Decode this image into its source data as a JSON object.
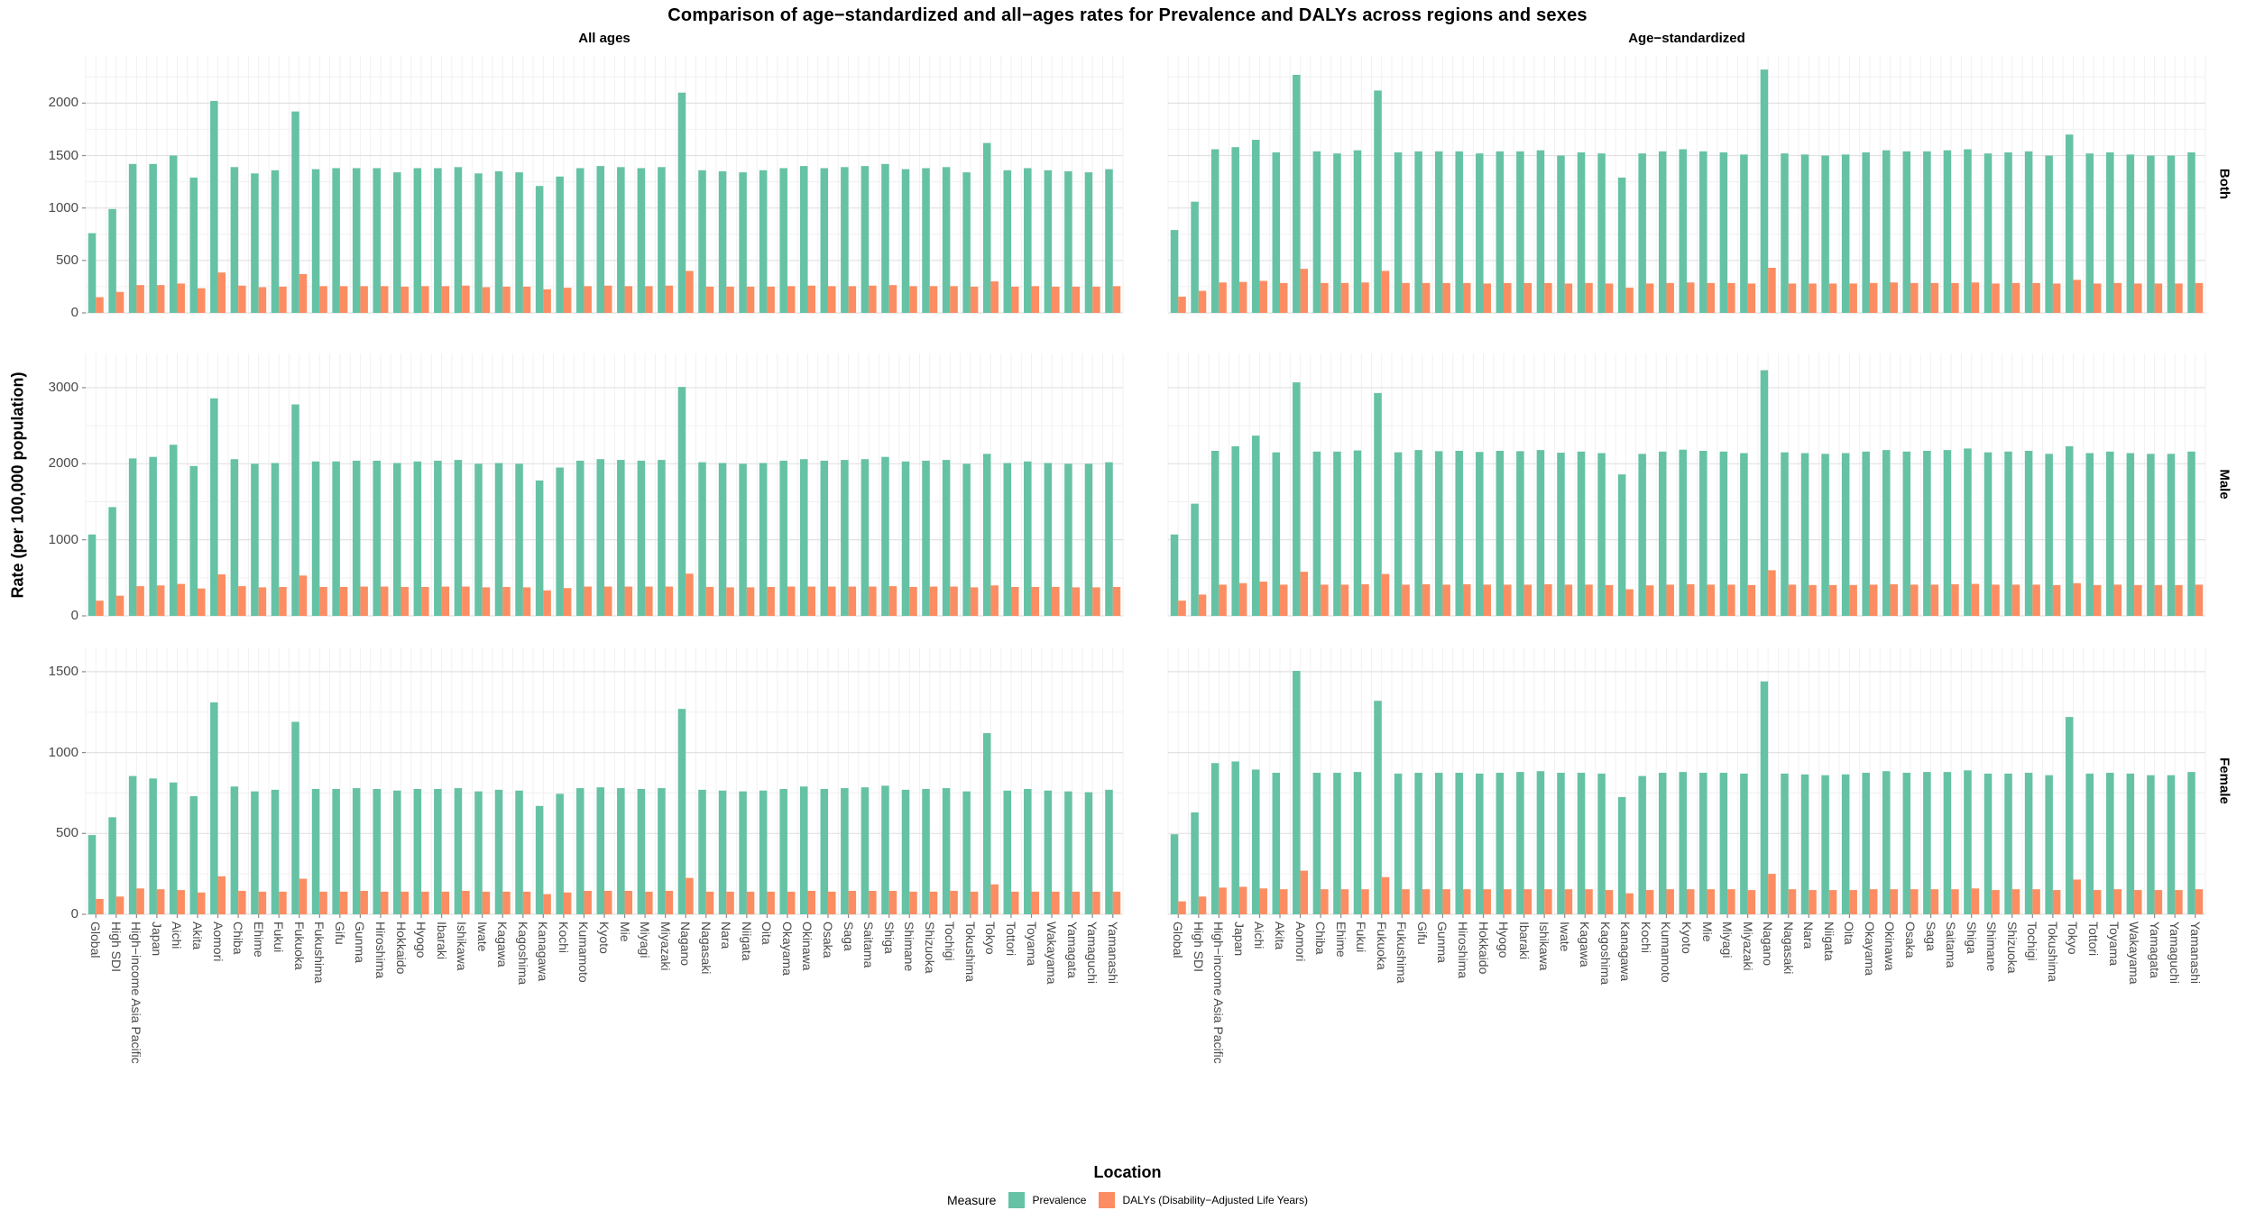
{
  "title": "Comparison of age−standardized and all−ages rates for Prevalence and DALYs across regions and sexes",
  "y_axis_label": "Rate (per 100,000 population)",
  "x_axis_label": "Location",
  "facets": {
    "columns": [
      "All ages",
      "Age−standardized"
    ],
    "rows": [
      "Both",
      "Male",
      "Female"
    ]
  },
  "legend": {
    "title": "Measure",
    "items": [
      {
        "label": "Prevalence",
        "color": "#66C2A5"
      },
      {
        "label": "DALYs (Disability−Adjusted Life Years)",
        "color": "#FC8D62"
      }
    ]
  },
  "chart_data": {
    "type": "bar",
    "grid": "on",
    "legend_position": "bottom",
    "categories": [
      "Global",
      "High SDI",
      "High−income Asia Pacific",
      "Japan",
      "Aichi",
      "Akita",
      "Aomori",
      "Chiba",
      "Ehime",
      "Fukui",
      "Fukuoka",
      "Fukushima",
      "Gifu",
      "Gunma",
      "Hiroshima",
      "Hokkaido",
      "Hyogo",
      "Ibaraki",
      "Ishikawa",
      "Iwate",
      "Kagawa",
      "Kagoshima",
      "Kanagawa",
      "Kochi",
      "Kumamoto",
      "Kyoto",
      "Mie",
      "Miyagi",
      "Miyazaki",
      "Nagano",
      "Nagasaki",
      "Nara",
      "Niigata",
      "Oita",
      "Okayama",
      "Okinawa",
      "Osaka",
      "Saga",
      "Saitama",
      "Shiga",
      "Shimane",
      "Shizuoka",
      "Tochigi",
      "Tokushima",
      "Tokyo",
      "Tottori",
      "Toyama",
      "Wakayama",
      "Yamagata",
      "Yamaguchi",
      "Yamanashi"
    ],
    "panels": [
      {
        "row": "Both",
        "column": "All ages",
        "ylim": [
          0,
          2450
        ],
        "y_ticks": [
          0,
          500,
          1000,
          1500,
          2000
        ],
        "series": [
          {
            "name": "Prevalence",
            "values": [
              760,
              990,
              1420,
              1420,
              1500,
              1290,
              2020,
              1390,
              1330,
              1360,
              1920,
              1370,
              1380,
              1380,
              1380,
              1340,
              1380,
              1380,
              1390,
              1330,
              1350,
              1340,
              1210,
              1300,
              1380,
              1400,
              1390,
              1380,
              1390,
              2100,
              1360,
              1350,
              1340,
              1360,
              1380,
              1400,
              1380,
              1390,
              1400,
              1420,
              1370,
              1380,
              1390,
              1340,
              1620,
              1360,
              1380,
              1360,
              1350,
              1340,
              1370
            ]
          },
          {
            "name": "DALYs",
            "values": [
              150,
              200,
              265,
              265,
              280,
              235,
              385,
              260,
              245,
              250,
              370,
              255,
              255,
              255,
              255,
              250,
              255,
              255,
              260,
              245,
              250,
              250,
              225,
              240,
              255,
              260,
              255,
              255,
              260,
              400,
              250,
              250,
              250,
              250,
              255,
              260,
              255,
              255,
              260,
              265,
              255,
              255,
              255,
              250,
              300,
              250,
              255,
              250,
              250,
              250,
              255
            ]
          }
        ]
      },
      {
        "row": "Both",
        "column": "Age−standardized",
        "ylim": [
          0,
          2450
        ],
        "y_ticks": [
          0,
          500,
          1000,
          1500,
          2000
        ],
        "series": [
          {
            "name": "Prevalence",
            "values": [
              790,
              1060,
              1560,
              1580,
              1650,
              1530,
              2270,
              1540,
              1520,
              1550,
              2120,
              1530,
              1540,
              1540,
              1540,
              1520,
              1540,
              1540,
              1550,
              1500,
              1530,
              1520,
              1290,
              1520,
              1540,
              1560,
              1540,
              1530,
              1510,
              2320,
              1520,
              1510,
              1500,
              1510,
              1530,
              1550,
              1540,
              1540,
              1550,
              1560,
              1520,
              1530,
              1540,
              1500,
              1700,
              1520,
              1530,
              1510,
              1500,
              1500,
              1530
            ]
          },
          {
            "name": "DALYs",
            "values": [
              155,
              210,
              290,
              295,
              305,
              285,
              420,
              285,
              285,
              290,
              400,
              285,
              285,
              285,
              285,
              280,
              285,
              285,
              285,
              280,
              285,
              280,
              240,
              280,
              285,
              290,
              285,
              285,
              280,
              430,
              280,
              280,
              280,
              280,
              285,
              290,
              285,
              285,
              285,
              290,
              280,
              285,
              285,
              280,
              315,
              280,
              285,
              280,
              280,
              280,
              285
            ]
          }
        ]
      },
      {
        "row": "Male",
        "column": "All ages",
        "ylim": [
          0,
          3450
        ],
        "y_ticks": [
          0,
          1000,
          2000,
          3000
        ],
        "series": [
          {
            "name": "Prevalence",
            "values": [
              1070,
              1430,
              2070,
              2090,
              2250,
              1970,
              2860,
              2060,
              2000,
              2010,
              2780,
              2030,
              2030,
              2040,
              2040,
              2010,
              2030,
              2040,
              2050,
              2000,
              2010,
              2000,
              1780,
              1950,
              2040,
              2060,
              2050,
              2040,
              2050,
              3010,
              2020,
              2010,
              2000,
              2010,
              2040,
              2060,
              2040,
              2050,
              2060,
              2090,
              2030,
              2040,
              2050,
              2000,
              2130,
              2010,
              2030,
              2010,
              2000,
              2000,
              2020
            ]
          },
          {
            "name": "DALYs",
            "values": [
              200,
              265,
              390,
              400,
              420,
              360,
              545,
              390,
              375,
              380,
              530,
              380,
              380,
              385,
              385,
              380,
              380,
              385,
              385,
              375,
              380,
              375,
              335,
              365,
              385,
              385,
              385,
              385,
              385,
              555,
              380,
              375,
              375,
              380,
              385,
              385,
              385,
              385,
              385,
              390,
              380,
              385,
              385,
              375,
              400,
              380,
              380,
              380,
              375,
              375,
              380
            ]
          }
        ]
      },
      {
        "row": "Male",
        "column": "Age−standardized",
        "ylim": [
          0,
          3450
        ],
        "y_ticks": [
          0,
          1000,
          2000,
          3000
        ],
        "series": [
          {
            "name": "Prevalence",
            "values": [
              1070,
              1475,
              2170,
              2230,
              2370,
              2150,
              3070,
              2160,
              2160,
              2175,
              2930,
              2150,
              2180,
              2165,
              2170,
              2155,
              2170,
              2165,
              2180,
              2145,
              2160,
              2140,
              1860,
              2130,
              2160,
              2185,
              2170,
              2160,
              2140,
              3230,
              2150,
              2140,
              2130,
              2140,
              2160,
              2180,
              2160,
              2170,
              2180,
              2200,
              2150,
              2160,
              2170,
              2130,
              2230,
              2140,
              2160,
              2140,
              2130,
              2130,
              2160
            ]
          },
          {
            "name": "DALYs",
            "values": [
              200,
              280,
              410,
              430,
              450,
              410,
              580,
              410,
              410,
              415,
              550,
              410,
              415,
              410,
              415,
              410,
              410,
              410,
              415,
              410,
              410,
              405,
              350,
              400,
              410,
              415,
              410,
              410,
              405,
              600,
              410,
              405,
              405,
              405,
              410,
              415,
              410,
              410,
              415,
              420,
              410,
              410,
              410,
              405,
              430,
              405,
              410,
              405,
              405,
              405,
              410
            ]
          }
        ]
      },
      {
        "row": "Female",
        "column": "All ages",
        "ylim": [
          0,
          1650
        ],
        "y_ticks": [
          0,
          500,
          1000,
          1500
        ],
        "series": [
          {
            "name": "Prevalence",
            "values": [
              490,
              600,
              855,
              840,
              815,
              730,
              1310,
              790,
              760,
              770,
              1190,
              775,
              775,
              780,
              775,
              765,
              775,
              775,
              780,
              760,
              770,
              765,
              670,
              745,
              780,
              785,
              780,
              775,
              780,
              1270,
              770,
              765,
              760,
              765,
              775,
              790,
              775,
              780,
              785,
              795,
              770,
              775,
              780,
              760,
              1120,
              765,
              775,
              765,
              760,
              755,
              770
            ]
          },
          {
            "name": "DALYs",
            "values": [
              95,
              110,
              160,
              155,
              150,
              135,
              235,
              145,
              140,
              140,
              220,
              140,
              140,
              145,
              140,
              140,
              140,
              140,
              145,
              140,
              140,
              140,
              125,
              135,
              145,
              145,
              145,
              140,
              145,
              225,
              140,
              140,
              140,
              140,
              140,
              145,
              140,
              145,
              145,
              145,
              140,
              140,
              145,
              140,
              185,
              140,
              140,
              140,
              140,
              140,
              140
            ]
          }
        ]
      },
      {
        "row": "Female",
        "column": "Age−standardized",
        "ylim": [
          0,
          1650
        ],
        "y_ticks": [
          0,
          500,
          1000,
          1500
        ],
        "series": [
          {
            "name": "Prevalence",
            "values": [
              495,
              630,
              935,
              945,
              895,
              875,
              1505,
              875,
              875,
              880,
              1320,
              870,
              875,
              875,
              875,
              870,
              875,
              880,
              885,
              875,
              875,
              870,
              725,
              855,
              875,
              880,
              875,
              875,
              870,
              1440,
              870,
              865,
              860,
              865,
              875,
              885,
              875,
              880,
              880,
              890,
              870,
              870,
              875,
              860,
              1220,
              870,
              875,
              870,
              860,
              860,
              880
            ]
          },
          {
            "name": "DALYs",
            "values": [
              80,
              110,
              165,
              170,
              160,
              155,
              270,
              155,
              155,
              155,
              230,
              155,
              155,
              155,
              155,
              155,
              155,
              155,
              155,
              155,
              155,
              150,
              130,
              150,
              155,
              155,
              155,
              155,
              150,
              250,
              155,
              150,
              150,
              150,
              155,
              155,
              155,
              155,
              155,
              160,
              150,
              155,
              155,
              150,
              215,
              150,
              155,
              150,
              150,
              150,
              155
            ]
          }
        ]
      }
    ]
  }
}
